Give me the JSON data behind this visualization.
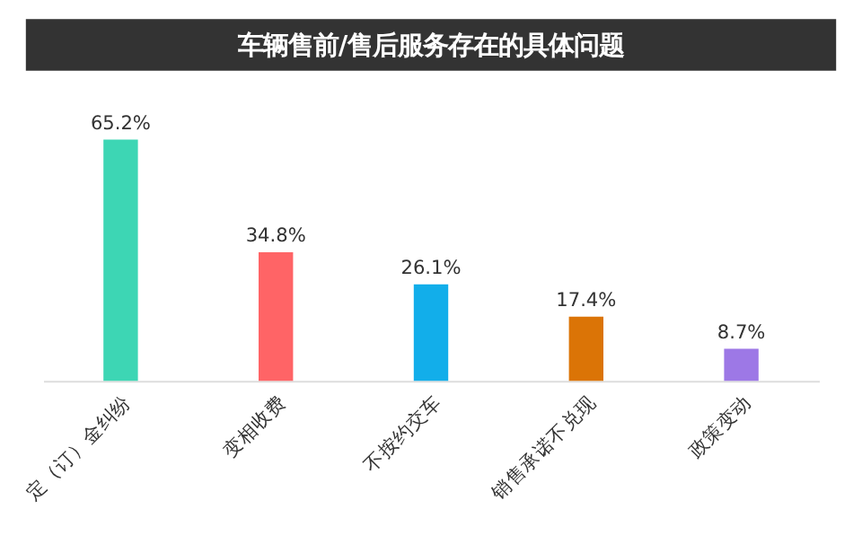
{
  "chart_data": {
    "type": "bar",
    "title": "车辆售前/售后服务存在的具体问题",
    "categories": [
      "定（订）金纠纷",
      "变相收费",
      "不按约交车",
      "销售承诺不兑现",
      "政策变动"
    ],
    "values": [
      65.2,
      34.8,
      26.1,
      17.4,
      8.7
    ],
    "value_labels": [
      "65.2%",
      "34.8%",
      "26.1%",
      "17.4%",
      "8.7%"
    ],
    "colors": [
      "#3dd6b4",
      "#ff6466",
      "#12aeea",
      "#db7406",
      "#9d78e6"
    ],
    "grid": false
  }
}
